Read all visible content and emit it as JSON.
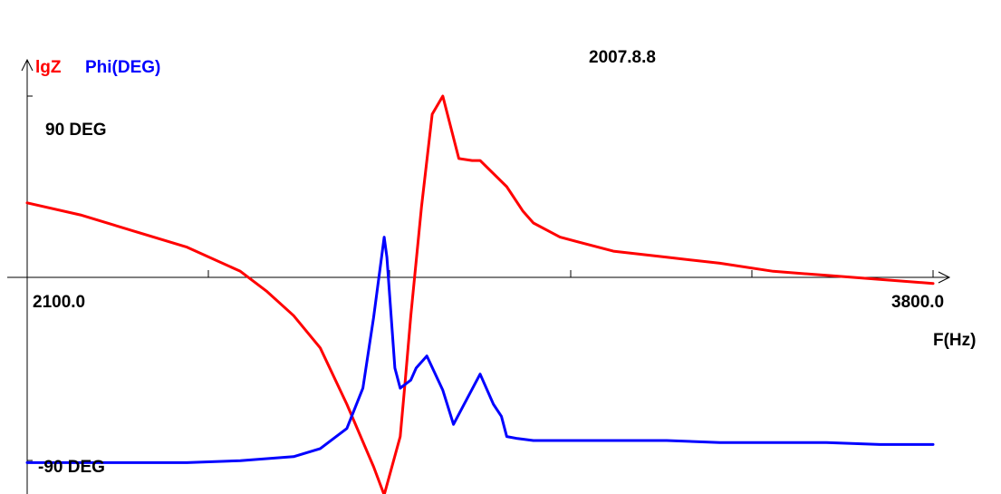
{
  "chart_data": {
    "type": "line",
    "date_label": "2007.8.8",
    "legend": {
      "lgz": "lgZ",
      "phi": "Phi(DEG)"
    },
    "y_axis_labels": {
      "top": "90 DEG",
      "bottom": "-90 DEG"
    },
    "x_tick_labels": {
      "start": "2100.0",
      "end": "3800.0"
    },
    "xlabel": "F(Hz)",
    "xlim": [
      2100,
      3800
    ],
    "ylim": [
      -90,
      90
    ],
    "colors": {
      "lgz": "#ff0000",
      "phi": "#0000ff",
      "axis": "#000000"
    },
    "series": [
      {
        "key": "lgz",
        "color": "#ff0000",
        "x": [
          2100,
          2200,
          2300,
          2400,
          2500,
          2550,
          2600,
          2650,
          2700,
          2750,
          2770,
          2800,
          2810,
          2820,
          2840,
          2860,
          2880,
          2910,
          2935,
          2950,
          3000,
          3030,
          3050,
          3100,
          3200,
          3300,
          3400,
          3500,
          3600,
          3700,
          3800
        ],
        "y": [
          37,
          31,
          23,
          15,
          3,
          -7,
          -19,
          -35,
          -63,
          -94,
          -108,
          -79,
          -50,
          -19,
          35,
          81,
          90,
          59,
          58,
          58,
          45,
          33,
          27,
          20,
          13,
          10,
          7,
          3,
          1,
          -1,
          -3
        ]
      },
      {
        "key": "phi",
        "color": "#0000ff",
        "x": [
          2100,
          2200,
          2300,
          2400,
          2500,
          2600,
          2650,
          2700,
          2730,
          2750,
          2765,
          2770,
          2775,
          2790,
          2800,
          2820,
          2830,
          2850,
          2880,
          2900,
          2950,
          2975,
          2990,
          3000,
          3020,
          3050,
          3100,
          3200,
          3300,
          3400,
          3500,
          3600,
          3700,
          3800
        ],
        "y": [
          -92,
          -92,
          -92,
          -92,
          -91,
          -89,
          -85,
          -75,
          -55,
          -20,
          10,
          20,
          10,
          -45,
          -55,
          -51,
          -45,
          -39,
          -56,
          -73,
          -48,
          -63,
          -69,
          -79,
          -80,
          -81,
          -81,
          -81,
          -81,
          -82,
          -82,
          -82,
          -83,
          -83
        ]
      }
    ]
  }
}
